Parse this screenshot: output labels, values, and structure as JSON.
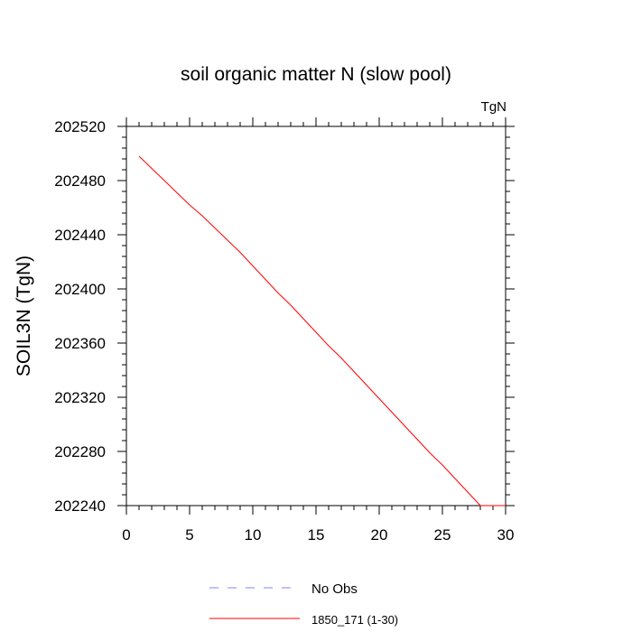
{
  "chart_data": {
    "type": "line",
    "title": "soil organic matter N (slow pool)",
    "units_label": "TgN",
    "xlabel": "",
    "ylabel": "SOIL3N  (TgN)",
    "xlim": [
      0,
      30
    ],
    "ylim": [
      202240,
      202520
    ],
    "xticks": [
      0,
      5,
      10,
      15,
      20,
      25,
      30
    ],
    "yticks": [
      202240,
      202280,
      202320,
      202360,
      202400,
      202440,
      202480,
      202520
    ],
    "grid": false,
    "legend_position": "bottom-center",
    "series": [
      {
        "name": "No Obs",
        "color": "#8080ff",
        "dash": "dashed",
        "x": [],
        "y": []
      },
      {
        "name": "1850_171 (1-30)",
        "color": "#ff0000",
        "dash": "solid",
        "x": [
          1,
          2,
          3,
          4,
          5,
          6,
          7,
          8,
          9,
          10,
          11,
          12,
          13,
          14,
          15,
          16,
          17,
          18,
          19,
          20,
          21,
          22,
          23,
          24,
          25,
          26,
          27,
          28,
          29,
          30
        ],
        "y": [
          202498,
          202489,
          202480,
          202471,
          202462,
          202454,
          202445,
          202436,
          202427,
          202417,
          202407,
          202397,
          202388,
          202378,
          202368,
          202358,
          202349,
          202339,
          202329,
          202319,
          202309,
          202299,
          202289,
          202279,
          202270,
          202260,
          202250,
          202239,
          202229,
          202218
        ]
      }
    ]
  }
}
